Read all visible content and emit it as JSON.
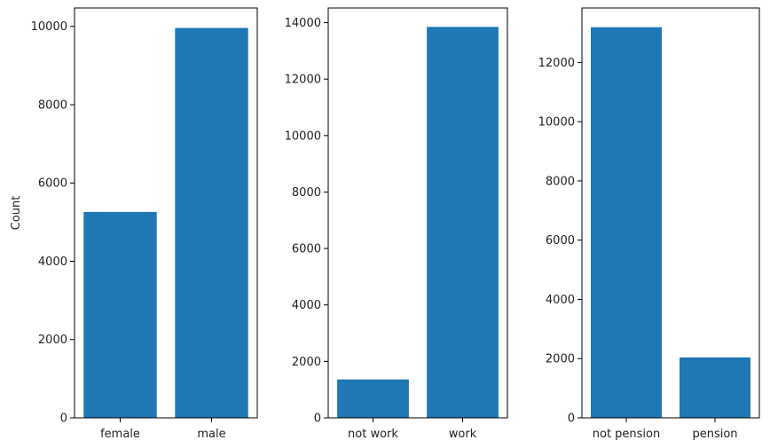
{
  "chart_data": [
    {
      "type": "bar",
      "categories": [
        "female",
        "male"
      ],
      "values": [
        5260,
        9960
      ],
      "ylabel": "Count",
      "ylim": [
        0,
        10470
      ],
      "yticks": [
        0,
        2000,
        4000,
        6000,
        8000,
        10000
      ],
      "bar_color": "#1f77b4",
      "grid": false
    },
    {
      "type": "bar",
      "categories": [
        "not work",
        "work"
      ],
      "values": [
        1360,
        13850
      ],
      "ylabel": "",
      "ylim": [
        0,
        14520
      ],
      "yticks": [
        0,
        2000,
        4000,
        6000,
        8000,
        10000,
        12000,
        14000
      ],
      "bar_color": "#1f77b4",
      "grid": false
    },
    {
      "type": "bar",
      "categories": [
        "not pension",
        "pension"
      ],
      "values": [
        13190,
        2040
      ],
      "ylabel": "",
      "ylim": [
        0,
        13840
      ],
      "yticks": [
        0,
        2000,
        4000,
        6000,
        8000,
        10000,
        12000
      ],
      "bar_color": "#1f77b4",
      "grid": false
    }
  ]
}
